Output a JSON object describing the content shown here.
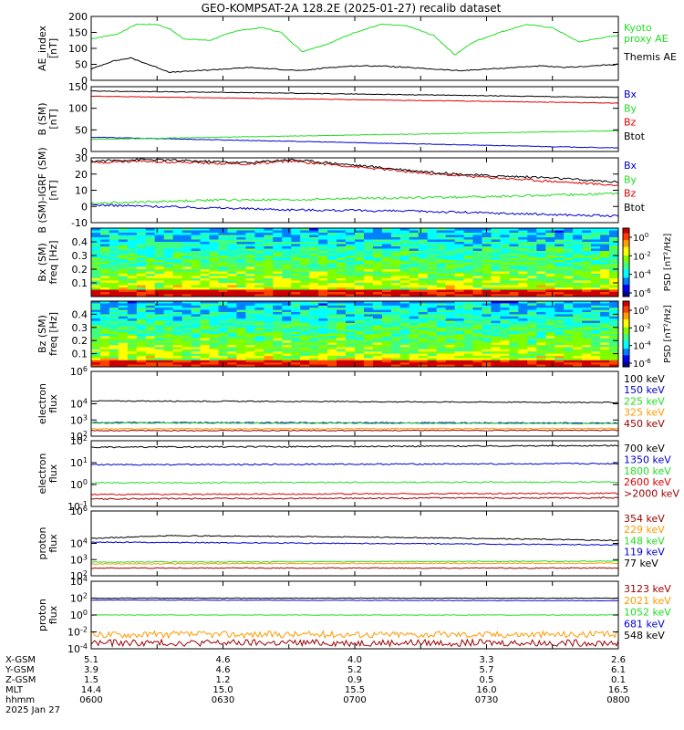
{
  "title": "GEO-KOMPSAT-2A 128.2E (2025-01-27) recalib dataset",
  "colors": {
    "black": "#000000",
    "green": "#22dd22",
    "red": "#dd0000",
    "blue": "#0000cc",
    "orange": "#ff9900",
    "darkred": "#990000",
    "axis": "#000000"
  },
  "chart_data": [
    {
      "type": "line",
      "panel": "ae",
      "ylabel": "AE_index\n[nT]",
      "ylim": [
        0,
        200
      ],
      "ylog": false,
      "yticks": [
        {
          "v": 0,
          "label": "0"
        },
        {
          "v": 50,
          "label": "50"
        },
        {
          "v": 100,
          "label": "100"
        },
        {
          "v": 150,
          "label": "150"
        },
        {
          "v": 200,
          "label": "200"
        }
      ],
      "series": [
        {
          "name": "Kyoto\nproxy AE",
          "color": "#22dd22",
          "x": [
            6.0,
            6.1,
            6.17,
            6.25,
            6.3,
            6.35,
            6.45,
            6.55,
            6.65,
            6.72,
            6.8,
            6.9,
            7.0,
            7.1,
            7.2,
            7.3,
            7.38,
            7.45,
            7.55,
            7.65,
            7.75,
            7.85,
            7.95,
            8.0
          ],
          "y": [
            130,
            145,
            175,
            175,
            160,
            130,
            125,
            155,
            165,
            150,
            90,
            115,
            150,
            175,
            170,
            140,
            80,
            120,
            150,
            175,
            165,
            120,
            135,
            140
          ]
        },
        {
          "name": "Themis AE",
          "color": "#000000",
          "x": [
            6.0,
            6.08,
            6.15,
            6.25,
            6.3,
            6.4,
            6.5,
            6.6,
            6.7,
            6.8,
            6.9,
            7.0,
            7.1,
            7.2,
            7.3,
            7.4,
            7.5,
            7.6,
            7.7,
            7.8,
            7.9,
            8.0
          ],
          "y": [
            35,
            60,
            70,
            40,
            25,
            30,
            35,
            40,
            35,
            30,
            40,
            45,
            45,
            40,
            35,
            30,
            35,
            40,
            45,
            40,
            45,
            50
          ]
        }
      ]
    },
    {
      "type": "line",
      "panel": "b_sm",
      "ylabel": "B (SM)\n[nT]",
      "ylim": [
        0,
        150
      ],
      "ylog": false,
      "yticks": [
        {
          "v": 0,
          "label": "0"
        },
        {
          "v": 50,
          "label": "50"
        },
        {
          "v": 100,
          "label": "100"
        },
        {
          "v": 150,
          "label": "150"
        }
      ],
      "series": [
        {
          "name": "Bx",
          "color": "#0000cc",
          "x": [
            6.0,
            8.0
          ],
          "y": [
            33,
            8
          ]
        },
        {
          "name": "By",
          "color": "#22dd22",
          "x": [
            6.0,
            8.0
          ],
          "y": [
            28,
            48
          ]
        },
        {
          "name": "Bz",
          "color": "#dd0000",
          "x": [
            6.0,
            6.5,
            7.0,
            7.5,
            8.0
          ],
          "y": [
            128,
            124,
            120,
            116,
            112
          ]
        },
        {
          "name": "Btot",
          "color": "#000000",
          "x": [
            6.0,
            6.5,
            7.0,
            7.5,
            8.0
          ],
          "y": [
            140,
            137,
            133,
            129,
            125
          ]
        }
      ]
    },
    {
      "type": "line",
      "panel": "b_igrf",
      "ylabel": "B (SM)-IGRF (SM)\n[nT]",
      "ylim": [
        -10,
        30
      ],
      "ylog": false,
      "yticks": [
        {
          "v": -10,
          "label": "-10"
        },
        {
          "v": 0,
          "label": "0"
        },
        {
          "v": 10,
          "label": "10"
        },
        {
          "v": 20,
          "label": "20"
        },
        {
          "v": 30,
          "label": "30"
        }
      ],
      "series": [
        {
          "name": "Bx",
          "color": "#0000cc",
          "x": [
            6.0,
            6.25,
            6.5,
            6.75,
            7.0,
            7.25,
            7.5,
            7.75,
            8.0
          ],
          "y": [
            1,
            0,
            -1,
            -2,
            -2.5,
            -3,
            -4,
            -5,
            -6
          ]
        },
        {
          "name": "By",
          "color": "#22dd22",
          "x": [
            6.0,
            6.25,
            6.5,
            6.75,
            7.0,
            7.25,
            7.5,
            7.75,
            8.0
          ],
          "y": [
            2,
            3,
            4,
            4,
            5,
            5.5,
            6,
            7,
            8
          ]
        },
        {
          "name": "Bz",
          "color": "#dd0000",
          "x": [
            6.0,
            6.2,
            6.4,
            6.6,
            6.75,
            6.9,
            7.1,
            7.3,
            7.5,
            7.7,
            7.9,
            8.0
          ],
          "y": [
            27,
            28,
            27,
            26,
            28,
            26,
            23,
            20,
            18,
            16,
            14,
            13
          ]
        },
        {
          "name": "Btot",
          "color": "#000000",
          "x": [
            6.0,
            6.2,
            6.4,
            6.6,
            6.75,
            6.9,
            7.1,
            7.3,
            7.5,
            7.7,
            7.9,
            8.0
          ],
          "y": [
            28,
            29,
            28,
            27,
            29,
            27,
            24,
            21,
            19,
            18,
            16,
            15
          ]
        }
      ]
    },
    {
      "type": "heatmap",
      "panel": "bx_psd",
      "ylabel": "Bx (SM)\nfreq [Hz]",
      "ylim": [
        0,
        0.5
      ],
      "ylog": false,
      "yticks": [
        {
          "v": 0.1,
          "label": "0.1"
        },
        {
          "v": 0.2,
          "label": "0.2"
        },
        {
          "v": 0.3,
          "label": "0.3"
        },
        {
          "v": 0.4,
          "label": "0.4"
        }
      ],
      "colorbar": {
        "label": "PSD [nT^2/Hz]",
        "ticks": [
          "10^0",
          "10^-2",
          "10^-4",
          "10^-6"
        ]
      }
    },
    {
      "type": "heatmap",
      "panel": "bz_psd",
      "ylabel": "Bz (SM)\nfreq [Hz]",
      "ylim": [
        0,
        0.5
      ],
      "ylog": false,
      "yticks": [
        {
          "v": 0.1,
          "label": "0.1"
        },
        {
          "v": 0.2,
          "label": "0.2"
        },
        {
          "v": 0.3,
          "label": "0.3"
        },
        {
          "v": 0.4,
          "label": "0.4"
        }
      ],
      "colorbar": {
        "label": "PSD [nT^2/Hz]",
        "ticks": [
          "10^0",
          "10^-2",
          "10^-4",
          "10^-6"
        ]
      }
    },
    {
      "type": "line",
      "panel": "e_flux_low",
      "ylabel": "electron\nflux",
      "ylim": [
        100,
        1000000
      ],
      "ylog": true,
      "yticks": [
        {
          "v": 100,
          "label": "10^2"
        },
        {
          "v": 1000,
          "label": "10^3"
        },
        {
          "v": 10000,
          "label": "10^4"
        },
        {
          "v": 1000000,
          "label": "10^6"
        }
      ],
      "series": [
        {
          "name": "100 keV",
          "color": "#000000",
          "x": [
            6.0,
            8.0
          ],
          "y": [
            15000,
            12000
          ]
        },
        {
          "name": "150 keV",
          "color": "#0000cc",
          "x": [
            6.0,
            8.0
          ],
          "y": [
            700,
            650
          ]
        },
        {
          "name": "225 keV",
          "color": "#22dd22",
          "x": [
            6.0,
            8.0
          ],
          "y": [
            650,
            600
          ]
        },
        {
          "name": "325 keV",
          "color": "#ff9900",
          "x": [
            6.0,
            8.0
          ],
          "y": [
            280,
            300
          ]
        },
        {
          "name": "450 keV",
          "color": "#990000",
          "x": [
            6.0,
            8.0
          ],
          "y": [
            220,
            230
          ]
        }
      ]
    },
    {
      "type": "line",
      "panel": "e_flux_high",
      "ylabel": "electron\nflux",
      "ylim": [
        0.1,
        100
      ],
      "ylog": true,
      "yticks": [
        {
          "v": 0.1,
          "label": "10^-1"
        },
        {
          "v": 1,
          "label": "10^0"
        },
        {
          "v": 10,
          "label": "10^1"
        },
        {
          "v": 100,
          "label": "10^2"
        }
      ],
      "series": [
        {
          "name": "700 keV",
          "color": "#000000",
          "x": [
            6.0,
            8.0
          ],
          "y": [
            50,
            60
          ]
        },
        {
          "name": "1350 keV",
          "color": "#0000cc",
          "x": [
            6.0,
            8.0
          ],
          "y": [
            8,
            9
          ]
        },
        {
          "name": "1800 keV",
          "color": "#22dd22",
          "x": [
            6.0,
            8.0
          ],
          "y": [
            1.2,
            1.3
          ]
        },
        {
          "name": "2600 keV",
          "color": "#dd0000",
          "x": [
            6.0,
            8.0
          ],
          "y": [
            0.35,
            0.4
          ]
        },
        {
          "name": ">2000 keV",
          "color": "#990000",
          "x": [
            6.0,
            8.0
          ],
          "y": [
            0.22,
            0.25
          ]
        }
      ]
    },
    {
      "type": "line",
      "panel": "p_flux_low",
      "ylabel": "proton\nflux",
      "ylim": [
        100,
        1000000
      ],
      "ylog": true,
      "yticks": [
        {
          "v": 100,
          "label": "10^2"
        },
        {
          "v": 1000,
          "label": "10^3"
        },
        {
          "v": 10000,
          "label": "10^4"
        },
        {
          "v": 1000000,
          "label": "10^6"
        }
      ],
      "series": [
        {
          "name": "354 keV",
          "color": "#990000",
          "x": [
            6.0,
            8.0
          ],
          "y": [
            300,
            300
          ]
        },
        {
          "name": "229 keV",
          "color": "#ff9900",
          "x": [
            6.0,
            8.0
          ],
          "y": [
            550,
            600
          ]
        },
        {
          "name": "148 keV",
          "color": "#22dd22",
          "x": [
            6.0,
            8.0
          ],
          "y": [
            700,
            800
          ]
        },
        {
          "name": "119 keV",
          "color": "#0000cc",
          "x": [
            6.0,
            8.0
          ],
          "y": [
            12000,
            8000
          ]
        },
        {
          "name": "77 keV",
          "color": "#000000",
          "x": [
            6.0,
            6.3,
            7.0,
            8.0
          ],
          "y": [
            20000,
            30000,
            25000,
            15000
          ]
        }
      ]
    },
    {
      "type": "line",
      "panel": "p_flux_high",
      "ylabel": "proton\nflux",
      "ylim": [
        0.0001,
        10000
      ],
      "ylog": true,
      "yticks": [
        {
          "v": 0.0001,
          "label": "10^-4"
        },
        {
          "v": 0.01,
          "label": "10^-2"
        },
        {
          "v": 1,
          "label": "10^0"
        },
        {
          "v": 100,
          "label": "10^2"
        },
        {
          "v": 10000,
          "label": "10^4"
        }
      ],
      "series": [
        {
          "name": "3123 keV",
          "color": "#990000",
          "x": [
            6.0,
            8.0
          ],
          "y": [
            0.0005,
            0.0005
          ]
        },
        {
          "name": "2021 keV",
          "color": "#ff9900",
          "x": [
            6.0,
            8.0
          ],
          "y": [
            0.005,
            0.005
          ]
        },
        {
          "name": "1052 keV",
          "color": "#22dd22",
          "x": [
            6.0,
            8.0
          ],
          "y": [
            1,
            1
          ]
        },
        {
          "name": "681 keV",
          "color": "#0000cc",
          "x": [
            6.0,
            8.0
          ],
          "y": [
            60,
            50
          ]
        },
        {
          "name": "548 keV",
          "color": "#000000",
          "x": [
            6.0,
            8.0
          ],
          "y": [
            100,
            100
          ]
        }
      ]
    }
  ],
  "footer": {
    "row_labels": [
      "X-GSM",
      "Y-GSM",
      "Z-GSM",
      "MLT",
      "hhmm",
      "2025 Jan 27"
    ],
    "columns": [
      [
        "5.1",
        "3.9",
        "1.5",
        "14.4",
        "0600"
      ],
      [
        "4.6",
        "4.6",
        "1.2",
        "15.0",
        "0630"
      ],
      [
        "4.0",
        "5.2",
        "0.9",
        "15.5",
        "0700"
      ],
      [
        "3.3",
        "5.7",
        "0.5",
        "16.0",
        "0730"
      ],
      [
        "2.6",
        "6.1",
        "0.1",
        "16.5",
        "0800"
      ]
    ]
  }
}
